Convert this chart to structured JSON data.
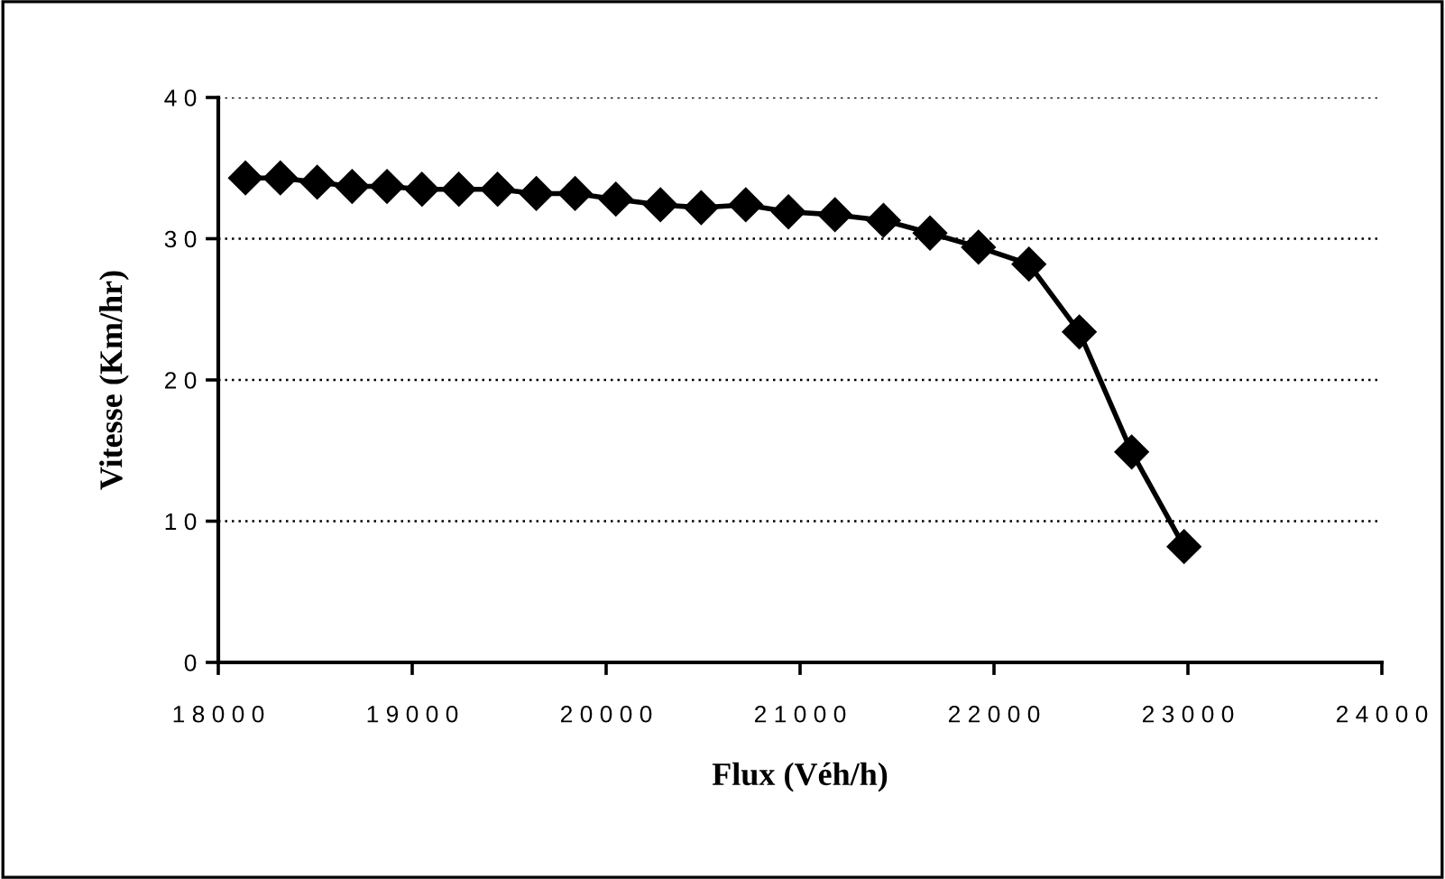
{
  "chart_data": {
    "type": "line",
    "xlabel": "Flux (Véh/h)",
    "ylabel": "Vitesse (Km/hr)",
    "x": [
      18140,
      18320,
      18510,
      18690,
      18870,
      19050,
      19240,
      19440,
      19640,
      19840,
      20050,
      20280,
      20490,
      20720,
      20940,
      21180,
      21430,
      21670,
      21920,
      22180,
      22440,
      22710,
      22980
    ],
    "series": [
      {
        "color": "#000000",
        "values": [
          34.3,
          34.3,
          34.0,
          33.7,
          33.7,
          33.5,
          33.5,
          33.5,
          33.2,
          33.2,
          32.8,
          32.4,
          32.2,
          32.4,
          31.9,
          31.7,
          31.3,
          30.4,
          29.4,
          28.2,
          23.4,
          14.9,
          8.2
        ]
      }
    ],
    "xlim": [
      18000,
      24000
    ],
    "xticks": [
      18000,
      19000,
      20000,
      21000,
      22000,
      23000,
      24000
    ],
    "ylim": [
      0,
      40
    ],
    "yticks": [
      0,
      10,
      20,
      30,
      40
    ],
    "grid": "y",
    "marker": "diamond",
    "line_style": "solid"
  }
}
